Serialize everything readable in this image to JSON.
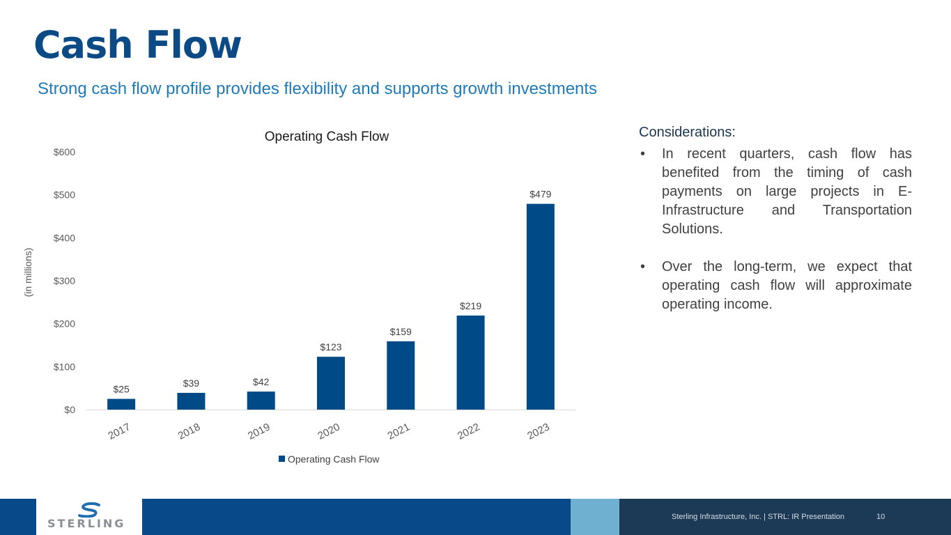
{
  "page": {
    "title": "Cash Flow",
    "subtitle": "Strong cash flow profile provides flexibility and supports growth investments"
  },
  "chart_data": {
    "type": "bar",
    "title": "Operating Cash Flow",
    "xlabel": "",
    "ylabel": "(in millions)",
    "categories": [
      "2017",
      "2018",
      "2019",
      "2020",
      "2021",
      "2022",
      "2023"
    ],
    "series": [
      {
        "name": "Operating Cash Flow",
        "values": [
          25,
          39,
          42,
          123,
          159,
          219,
          479
        ]
      }
    ],
    "data_labels": [
      "$25",
      "$39",
      "$42",
      "$123",
      "$159",
      "$219",
      "$479"
    ],
    "ylim": [
      0,
      600
    ],
    "yticks": [
      0,
      100,
      200,
      300,
      400,
      500,
      600
    ],
    "ytick_labels": [
      "$0",
      "$100",
      "$200",
      "$300",
      "$400",
      "$500",
      "$600"
    ],
    "grid": false,
    "legend": "bottom",
    "bar_color": "#004a87"
  },
  "considerations": {
    "heading": "Considerations:",
    "bullets": [
      "In recent quarters, cash flow has benefited from the timing of cash payments on large projects in E-Infrastructure and Transportation Solutions.",
      "Over the long-term, we expect that operating cash flow will approximate operating income."
    ]
  },
  "footer": {
    "logo_text": "STERLING",
    "company_text": "Sterling Infrastructure, Inc. | STRL:  IR Presentation",
    "page_number": "10"
  },
  "colors": {
    "brand_blue": "#0b4a84",
    "accent_blue": "#1f7ab8",
    "footer_light": "#6fafcf",
    "footer_dark": "#1c3a55"
  }
}
